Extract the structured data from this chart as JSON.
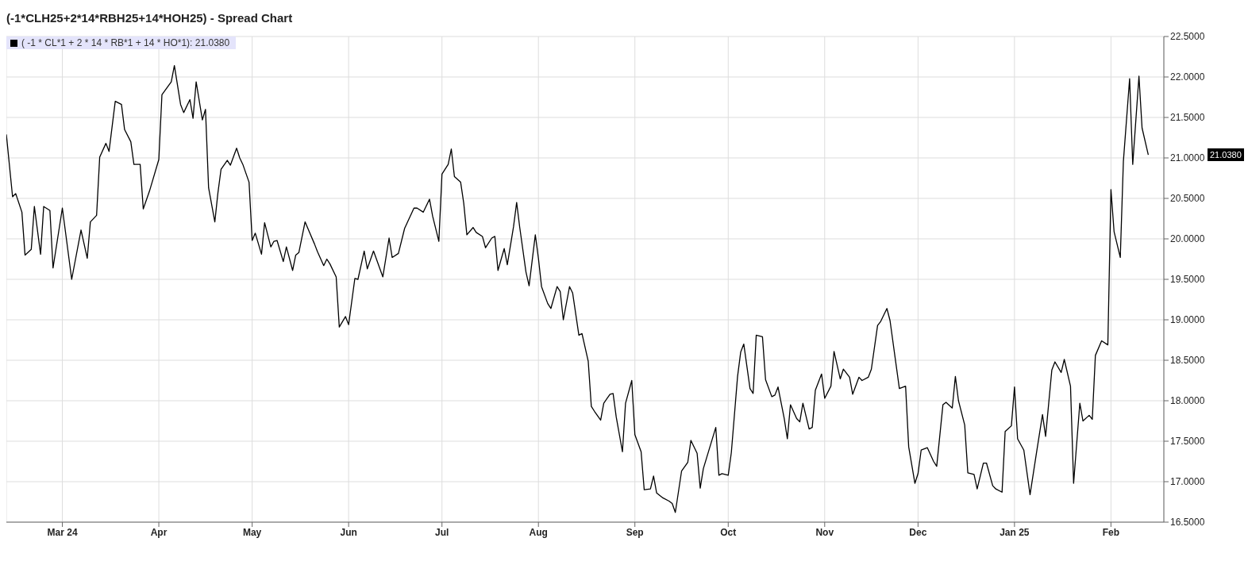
{
  "chart_data": {
    "type": "line",
    "title": "(-1*CLH25+2*14*RBH25+14*HOH25) - Spread Chart",
    "x": [
      "2024-02-12",
      "2024-02-14",
      "2024-02-15",
      "2024-02-17",
      "2024-02-18",
      "2024-02-20",
      "2024-02-21",
      "2024-02-23",
      "2024-02-24",
      "2024-02-26",
      "2024-02-27",
      "2024-03-01",
      "2024-03-04",
      "2024-03-07",
      "2024-03-09",
      "2024-03-10",
      "2024-03-12",
      "2024-03-13",
      "2024-03-15",
      "2024-03-16",
      "2024-03-18",
      "2024-03-20",
      "2024-03-21",
      "2024-03-23",
      "2024-03-24",
      "2024-03-26",
      "2024-03-27",
      "2024-03-29",
      "2024-04-01",
      "2024-04-02",
      "2024-04-05",
      "2024-04-06",
      "2024-04-08",
      "2024-04-09",
      "2024-04-11",
      "2024-04-12",
      "2024-04-13",
      "2024-04-15",
      "2024-04-16",
      "2024-04-17",
      "2024-04-19",
      "2024-04-20",
      "2024-04-21",
      "2024-04-23",
      "2024-04-24",
      "2024-04-26",
      "2024-04-27",
      "2024-04-28",
      "2024-04-30",
      "2024-05-01",
      "2024-05-02",
      "2024-05-04",
      "2024-05-05",
      "2024-05-07",
      "2024-05-08",
      "2024-05-09",
      "2024-05-11",
      "2024-05-12",
      "2024-05-14",
      "2024-05-15",
      "2024-05-16",
      "2024-05-18",
      "2024-05-19",
      "2024-05-21",
      "2024-05-22",
      "2024-05-24",
      "2024-05-25",
      "2024-05-26",
      "2024-05-28",
      "2024-05-29",
      "2024-05-31",
      "2024-06-01",
      "2024-06-03",
      "2024-06-04",
      "2024-06-06",
      "2024-06-07",
      "2024-06-09",
      "2024-06-12",
      "2024-06-14",
      "2024-06-15",
      "2024-06-17",
      "2024-06-19",
      "2024-06-22",
      "2024-06-23",
      "2024-06-25",
      "2024-06-27",
      "2024-06-28",
      "2024-06-30",
      "2024-07-01",
      "2024-07-03",
      "2024-07-04",
      "2024-07-05",
      "2024-07-07",
      "2024-07-08",
      "2024-07-09",
      "2024-07-11",
      "2024-07-12",
      "2024-07-14",
      "2024-07-15",
      "2024-07-17",
      "2024-07-18",
      "2024-07-19",
      "2024-07-21",
      "2024-07-22",
      "2024-07-24",
      "2024-07-25",
      "2024-07-26",
      "2024-07-28",
      "2024-07-29",
      "2024-07-31",
      "2024-08-01",
      "2024-08-02",
      "2024-08-04",
      "2024-08-05",
      "2024-08-07",
      "2024-08-08",
      "2024-08-09",
      "2024-08-11",
      "2024-08-12",
      "2024-08-14",
      "2024-08-15",
      "2024-08-17",
      "2024-08-18",
      "2024-08-19",
      "2024-08-21",
      "2024-08-22",
      "2024-08-24",
      "2024-08-25",
      "2024-08-26",
      "2024-08-28",
      "2024-08-29",
      "2024-08-31",
      "2024-09-01",
      "2024-09-03",
      "2024-09-04",
      "2024-09-06",
      "2024-09-07",
      "2024-09-08",
      "2024-09-10",
      "2024-09-12",
      "2024-09-13",
      "2024-09-14",
      "2024-09-16",
      "2024-09-18",
      "2024-09-19",
      "2024-09-21",
      "2024-09-22",
      "2024-09-23",
      "2024-09-27",
      "2024-09-28",
      "2024-09-29",
      "2024-10-01",
      "2024-10-02",
      "2024-10-04",
      "2024-10-05",
      "2024-10-06",
      "2024-10-08",
      "2024-10-09",
      "2024-10-10",
      "2024-10-12",
      "2024-10-13",
      "2024-10-15",
      "2024-10-16",
      "2024-10-17",
      "2024-10-19",
      "2024-10-20",
      "2024-10-21",
      "2024-10-23",
      "2024-10-24",
      "2024-10-25",
      "2024-10-27",
      "2024-10-28",
      "2024-10-29",
      "2024-10-31",
      "2024-11-01",
      "2024-11-03",
      "2024-11-04",
      "2024-11-06",
      "2024-11-07",
      "2024-11-09",
      "2024-11-10",
      "2024-11-12",
      "2024-11-13",
      "2024-11-15",
      "2024-11-16",
      "2024-11-18",
      "2024-11-19",
      "2024-11-21",
      "2024-11-22",
      "2024-11-24",
      "2024-11-25",
      "2024-11-27",
      "2024-11-28",
      "2024-11-30",
      "2024-12-01",
      "2024-12-02",
      "2024-12-04",
      "2024-12-06",
      "2024-12-07",
      "2024-12-09",
      "2024-12-10",
      "2024-12-12",
      "2024-12-13",
      "2024-12-14",
      "2024-12-16",
      "2024-12-17",
      "2024-12-19",
      "2024-12-20",
      "2024-12-22",
      "2024-12-23",
      "2024-12-25",
      "2024-12-26",
      "2024-12-28",
      "2024-12-29",
      "2024-12-31",
      "2025-01-01",
      "2025-01-02",
      "2025-01-04",
      "2025-01-06",
      "2025-01-08",
      "2025-01-10",
      "2025-01-11",
      "2025-01-13",
      "2025-01-14",
      "2025-01-16",
      "2025-01-17",
      "2025-01-19",
      "2025-01-20",
      "2025-01-22",
      "2025-01-23",
      "2025-01-25",
      "2025-01-26",
      "2025-01-27",
      "2025-01-29",
      "2025-01-31",
      "2025-02-01",
      "2025-02-02",
      "2025-02-04",
      "2025-02-05",
      "2025-02-07",
      "2025-02-08",
      "2025-02-10",
      "2025-02-11",
      "2025-02-13"
    ],
    "series": [
      {
        "name": "( -1 * CL*1 + 2 * 14 * RB*1 + 14 * HO*1): 21.0380",
        "color": "#000000",
        "values": [
          21.29,
          20.52,
          20.56,
          20.33,
          19.8,
          19.87,
          20.4,
          19.81,
          20.4,
          20.35,
          19.64,
          20.38,
          19.5,
          20.11,
          19.76,
          20.21,
          20.29,
          21.01,
          21.18,
          21.08,
          21.7,
          21.66,
          21.35,
          21.2,
          20.92,
          20.92,
          20.37,
          20.59,
          20.98,
          21.78,
          21.94,
          22.14,
          21.66,
          21.56,
          21.72,
          21.49,
          21.94,
          21.47,
          21.6,
          20.63,
          20.21,
          20.57,
          20.86,
          20.97,
          20.91,
          21.12,
          21.0,
          20.92,
          20.7,
          19.98,
          20.07,
          19.81,
          20.2,
          19.9,
          19.97,
          19.98,
          19.72,
          19.9,
          19.61,
          19.8,
          19.83,
          20.21,
          20.12,
          19.94,
          19.84,
          19.67,
          19.75,
          19.69,
          19.53,
          18.91,
          19.04,
          18.94,
          19.51,
          19.5,
          19.85,
          19.63,
          19.85,
          19.53,
          20.01,
          19.77,
          19.82,
          20.13,
          20.38,
          20.38,
          20.33,
          20.49,
          20.28,
          19.97,
          20.8,
          20.92,
          21.11,
          20.77,
          20.7,
          20.44,
          20.05,
          20.14,
          20.08,
          20.03,
          19.89,
          20.01,
          20.03,
          19.61,
          19.88,
          19.68,
          20.15,
          20.45,
          20.14,
          19.59,
          19.42,
          20.05,
          19.76,
          19.41,
          19.2,
          19.14,
          19.41,
          19.35,
          19.0,
          19.41,
          19.33,
          18.81,
          18.83,
          18.49,
          17.93,
          17.87,
          17.76,
          17.97,
          18.08,
          18.09,
          17.8,
          17.37,
          17.97,
          18.25,
          17.58,
          17.37,
          16.9,
          16.91,
          17.07,
          16.86,
          16.8,
          16.76,
          16.73,
          16.62,
          17.13,
          17.24,
          17.51,
          17.35,
          16.92,
          17.16,
          17.67,
          17.08,
          17.1,
          17.08,
          17.36,
          18.3,
          18.6,
          18.7,
          18.15,
          18.09,
          18.81,
          18.79,
          18.26,
          18.05,
          18.07,
          18.17,
          17.78,
          17.53,
          17.95,
          17.78,
          17.74,
          17.97,
          17.65,
          17.67,
          18.13,
          18.33,
          18.03,
          18.18,
          18.61,
          18.27,
          18.39,
          18.29,
          18.08,
          18.29,
          18.25,
          18.29,
          18.39,
          18.93,
          18.98,
          19.14,
          18.99,
          18.43,
          18.15,
          18.18,
          17.43,
          16.98,
          17.1,
          17.39,
          17.42,
          17.25,
          17.19,
          17.95,
          17.98,
          17.91,
          18.3,
          18.0,
          17.7,
          17.11,
          17.09,
          16.91,
          17.23,
          17.23,
          16.95,
          16.91,
          16.87,
          17.62,
          17.69,
          18.17,
          17.53,
          17.39,
          16.84,
          17.34,
          17.83,
          17.56,
          18.38,
          18.48,
          18.35,
          18.51,
          18.18,
          16.98,
          17.97,
          17.75,
          17.82,
          17.77,
          18.56,
          18.74,
          18.69,
          20.61,
          20.09,
          19.77,
          20.96,
          21.98,
          20.92,
          22.01,
          21.37,
          21.038
        ]
      }
    ],
    "xlim": [
      "2024-02-12",
      "2025-02-18"
    ],
    "xticks": [
      {
        "value": "2024-03",
        "label": "Mar 24"
      },
      {
        "value": "2024-04",
        "label": "Apr"
      },
      {
        "value": "2024-05",
        "label": "May"
      },
      {
        "value": "2024-06",
        "label": "Jun"
      },
      {
        "value": "2024-07",
        "label": "Jul"
      },
      {
        "value": "2024-08",
        "label": "Aug"
      },
      {
        "value": "2024-09",
        "label": "Sep"
      },
      {
        "value": "2024-10",
        "label": "Oct"
      },
      {
        "value": "2024-11",
        "label": "Nov"
      },
      {
        "value": "2024-12",
        "label": "Dec"
      },
      {
        "value": "2025-01",
        "label": "Jan 25"
      },
      {
        "value": "2025-02",
        "label": "Feb"
      }
    ],
    "ylim": [
      16.5,
      22.5
    ],
    "yticks": [
      {
        "value": 16.5,
        "label": "16.5000"
      },
      {
        "value": 17,
        "label": "17.0000"
      },
      {
        "value": 17.5,
        "label": "17.5000"
      },
      {
        "value": 18,
        "label": "18.0000"
      },
      {
        "value": 18.5,
        "label": "18.5000"
      },
      {
        "value": 19,
        "label": "19.0000"
      },
      {
        "value": 19.5,
        "label": "19.5000"
      },
      {
        "value": 20,
        "label": "20.0000"
      },
      {
        "value": 20.5,
        "label": "20.5000"
      },
      {
        "value": 21,
        "label": "21.0000"
      },
      {
        "value": 21.5,
        "label": "21.5000"
      },
      {
        "value": 22,
        "label": "22.0000"
      },
      {
        "value": 22.5,
        "label": "22.5000"
      }
    ],
    "annotations": [
      "21.0380"
    ],
    "grid": true,
    "legend": "top left",
    "marker": "none",
    "line_style": "solid"
  }
}
